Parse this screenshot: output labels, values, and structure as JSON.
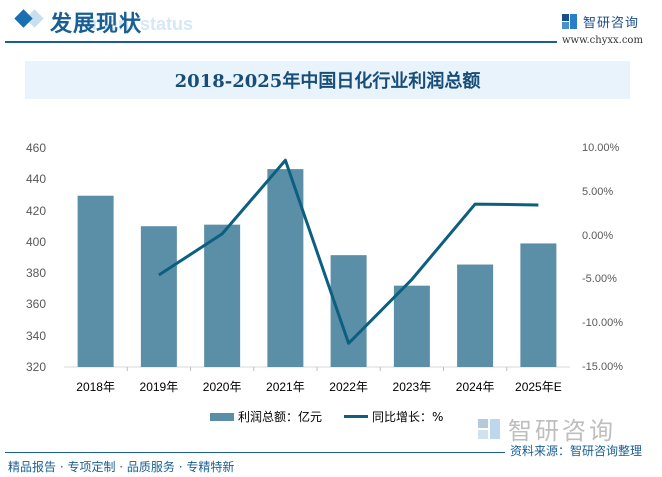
{
  "header": {
    "section_title": "发展现状",
    "section_subtitle": "ment status",
    "brand_name": "智研咨询",
    "brand_url": "www.chyxx.com"
  },
  "chart_title": "2018-2025年中国日化行业利润总额",
  "legend": {
    "bar_label": "利润总额：亿元",
    "line_label": "同比增长：%"
  },
  "footer": {
    "watermark_brand": "智研咨询",
    "source": "资料来源：智研咨询整理",
    "slogan": "精品报告 · 专项定制 · 品质服务 · 专精特新"
  },
  "colors": {
    "bar": "#5b8fa8",
    "line": "#0d5f80",
    "title_band": "#e8f3fb",
    "brand_blue": "#1a5f93"
  },
  "chart_data": {
    "type": "bar",
    "title": "2018-2025年中国日化行业利润总额",
    "categories": [
      "2018年",
      "2019年",
      "2020年",
      "2021年",
      "2022年",
      "2023年",
      "2024年",
      "2025年E"
    ],
    "series": [
      {
        "name": "利润总额：亿元",
        "type": "bar",
        "axis": "left",
        "values": [
          429.5,
          410.0,
          411.0,
          446.5,
          391.5,
          372.0,
          385.5,
          399.0
        ]
      },
      {
        "name": "同比增长：%",
        "type": "line",
        "axis": "right",
        "values": [
          null,
          -4.5,
          0.2,
          8.6,
          -12.3,
          -5.0,
          3.6,
          3.5
        ]
      }
    ],
    "left_axis": {
      "ylim": [
        320,
        460
      ],
      "ticks": [
        "460",
        "440",
        "420",
        "400",
        "380",
        "360",
        "340",
        "320"
      ]
    },
    "right_axis": {
      "ylim": [
        -15,
        10
      ],
      "ticks": [
        "10.00%",
        "5.00%",
        "0.00%",
        "-5.00%",
        "-10.00%",
        "-15.00%"
      ]
    },
    "xlabel": "",
    "ylabel": "",
    "grid": false,
    "legend_position": "bottom"
  }
}
